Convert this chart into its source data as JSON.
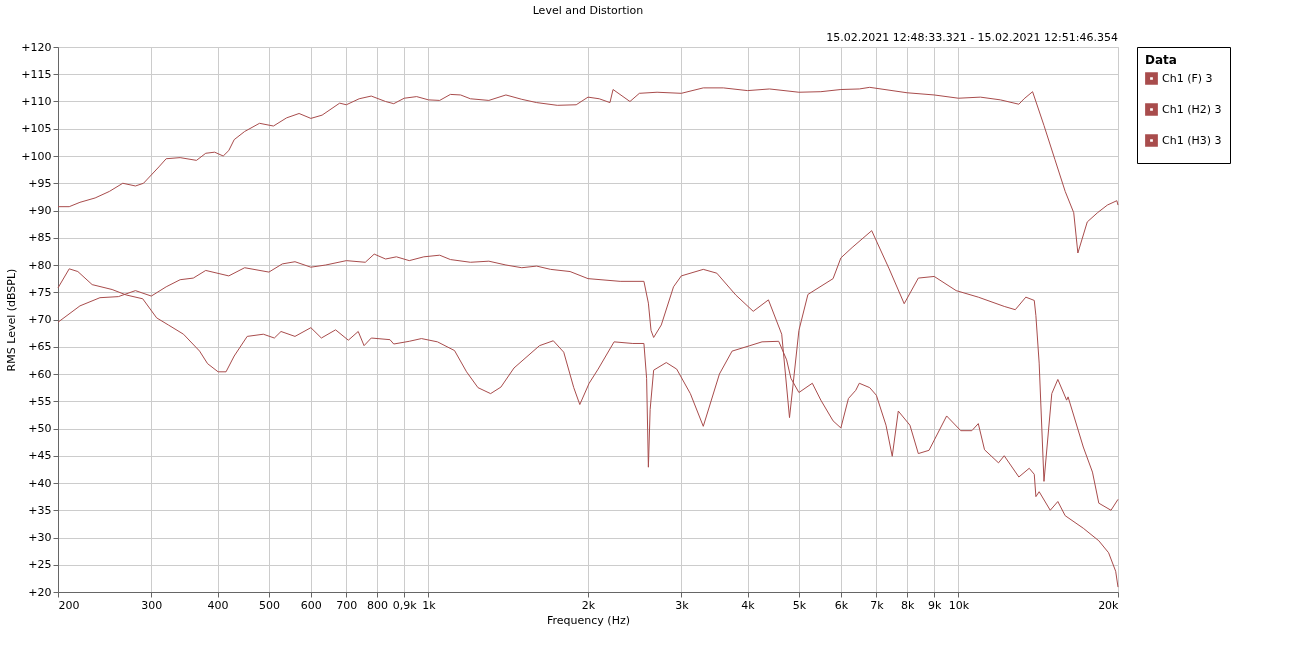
{
  "chart_data": {
    "type": "line",
    "title": "Level and Distortion",
    "subtitle": "15.02.2021 12:48:33.321 - 15.02.2021 12:51:46.354",
    "xlabel": "Frequency (Hz)",
    "ylabel": "RMS Level (dBSPL)",
    "legend_title": "Data",
    "legend": "top right",
    "grid": true,
    "log": "x",
    "line_style": "solid",
    "xlim": [
      200,
      20000
    ],
    "ylim": [
      20,
      120
    ],
    "xticks": [
      200,
      300,
      400,
      500,
      600,
      700,
      800,
      {
        "value": 900,
        "label": "0,9k"
      },
      {
        "value": 1000,
        "label": "1k"
      },
      {
        "value": 2000,
        "label": "2k"
      },
      {
        "value": 3000,
        "label": "3k"
      },
      {
        "value": 4000,
        "label": "4k"
      },
      {
        "value": 5000,
        "label": "5k"
      },
      {
        "value": 6000,
        "label": "6k"
      },
      {
        "value": 7000,
        "label": "7k"
      },
      {
        "value": 8000,
        "label": "8k"
      },
      {
        "value": 9000,
        "label": "9k"
      },
      {
        "value": 10000,
        "label": "10k"
      },
      {
        "value": 20000,
        "label": "20k"
      }
    ],
    "yticks": [
      {
        "value": 20,
        "label": "+20"
      },
      {
        "value": 25,
        "label": "+25"
      },
      {
        "value": 30,
        "label": "+30"
      },
      {
        "value": 35,
        "label": "+35"
      },
      {
        "value": 40,
        "label": "+40"
      },
      {
        "value": 45,
        "label": "+45"
      },
      {
        "value": 50,
        "label": "+50"
      },
      {
        "value": 55,
        "label": "+55"
      },
      {
        "value": 60,
        "label": "+60"
      },
      {
        "value": 65,
        "label": "+65"
      },
      {
        "value": 70,
        "label": "+70"
      },
      {
        "value": 75,
        "label": "+75"
      },
      {
        "value": 80,
        "label": "+80"
      },
      {
        "value": 85,
        "label": "+85"
      },
      {
        "value": 90,
        "label": "+90"
      },
      {
        "value": 95,
        "label": "+95"
      },
      {
        "value": 100,
        "label": "+100"
      },
      {
        "value": 105,
        "label": "+105"
      },
      {
        "value": 110,
        "label": "+110"
      },
      {
        "value": 115,
        "label": "+115"
      },
      {
        "value": 120,
        "label": "+120"
      }
    ],
    "series": [
      {
        "name": "Ch1 (F) 3",
        "color": "#a84c4c",
        "x": [
          200,
          210,
          220,
          235,
          250,
          265,
          280,
          290,
          310,
          320,
          340,
          365,
          380,
          395,
          410,
          420,
          430,
          450,
          480,
          510,
          540,
          570,
          600,
          630,
          680,
          700,
          740,
          780,
          830,
          860,
          900,
          950,
          1000,
          1050,
          1100,
          1150,
          1200,
          1300,
          1400,
          1500,
          1600,
          1750,
          1900,
          2000,
          2100,
          2200,
          2230,
          2400,
          2500,
          2700,
          3000,
          3300,
          3600,
          4000,
          4400,
          5000,
          5500,
          6000,
          6500,
          6800,
          8000,
          9000,
          10000,
          11000,
          12000,
          13000,
          13300,
          13800,
          14500,
          15200,
          15900,
          16500,
          16800,
          17500,
          18300,
          19100,
          19900,
          20000
        ],
        "values": [
          90.7,
          90.7,
          91.5,
          92.3,
          93.5,
          95,
          94.5,
          95,
          98,
          99.5,
          99.7,
          99.2,
          100.5,
          100.7,
          100,
          101,
          103,
          104.5,
          106,
          105.5,
          107,
          107.8,
          106.9,
          107.5,
          109.7,
          109.4,
          110.5,
          111,
          110,
          109.6,
          110.6,
          110.9,
          110.3,
          110.2,
          111.3,
          111.2,
          110.5,
          110.2,
          111.2,
          110.4,
          109.8,
          109.3,
          109.4,
          110.8,
          110.5,
          109.8,
          112.2,
          110,
          111.5,
          111.7,
          111.5,
          112.5,
          112.5,
          112,
          112.3,
          111.7,
          111.8,
          112.2,
          112.3,
          112.6,
          111.6,
          111.2,
          110.6,
          110.8,
          110.3,
          109.5,
          110.5,
          111.8,
          105.6,
          99.4,
          93.5,
          89.6,
          82.2,
          87.9,
          89.6,
          91,
          91.8,
          91
        ]
      },
      {
        "name": "Ch1 (H2) 3",
        "color": "#a84c4c",
        "x": [
          200,
          220,
          240,
          260,
          280,
          300,
          320,
          340,
          360,
          380,
          420,
          450,
          500,
          530,
          560,
          600,
          640,
          700,
          760,
          790,
          830,
          870,
          920,
          980,
          1050,
          1100,
          1200,
          1300,
          1400,
          1500,
          1600,
          1700,
          1850,
          2000,
          2300,
          2550,
          2600,
          2630,
          2660,
          2750,
          2900,
          3000,
          3300,
          3500,
          3800,
          4100,
          4380,
          4640,
          4800,
          5000,
          5200,
          5800,
          6000,
          6300,
          6860,
          7400,
          7900,
          8400,
          9000,
          9900,
          10900,
          12200,
          12800,
          13400,
          13900,
          14000,
          14200,
          14500,
          15000,
          15400,
          16000,
          16100,
          17200,
          17900,
          18400,
          19400,
          20000
        ],
        "values": [
          69.5,
          72.5,
          74,
          74.2,
          75.3,
          74.3,
          76,
          77.3,
          77.6,
          79,
          78,
          79.5,
          78.7,
          80.2,
          80.6,
          79.6,
          80,
          80.8,
          80.5,
          82,
          81.1,
          81.5,
          80.8,
          81.5,
          81.8,
          81,
          80.5,
          80.7,
          80,
          79.5,
          79.8,
          79.2,
          78.8,
          77.5,
          77,
          77,
          73,
          68,
          66.7,
          69,
          76,
          78,
          79.2,
          78.5,
          74.5,
          71.5,
          73.6,
          67.3,
          52,
          68,
          74.6,
          77.5,
          81.3,
          83.2,
          86.3,
          79.3,
          72.9,
          77.6,
          77.9,
          75.3,
          74.1,
          72.4,
          71.8,
          74.1,
          73.5,
          70.7,
          62,
          40.3,
          56.4,
          59,
          55.2,
          55.8,
          46.6,
          42,
          36.3,
          35,
          37
        ]
      },
      {
        "name": "Ch1 (H3) 3",
        "color": "#a84c4c",
        "x": [
          200,
          210,
          218,
          232,
          253,
          269,
          289,
          307,
          323,
          345,
          370,
          383,
          401,
          415,
          430,
          455,
          488,
          512,
          527,
          560,
          600,
          628,
          668,
          706,
          737,
          756,
          780,
          846,
          860,
          920,
          970,
          1040,
          1120,
          1180,
          1240,
          1310,
          1370,
          1450,
          1620,
          1720,
          1800,
          1880,
          1930,
          2010,
          2090,
          2240,
          2430,
          2550,
          2580,
          2600,
          2620,
          2660,
          2810,
          2940,
          3120,
          3300,
          3540,
          3740,
          4040,
          4260,
          4580,
          4740,
          4830,
          5000,
          5300,
          5500,
          5800,
          6000,
          6200,
          6400,
          6500,
          6800,
          7000,
          7300,
          7500,
          7700,
          8100,
          8400,
          8800,
          9500,
          10100,
          10600,
          10900,
          11200,
          11900,
          12200,
          13000,
          13600,
          13900,
          14000,
          14200,
          14900,
          15400,
          15900,
          17200,
          18400,
          19200,
          19800,
          20000
        ],
        "values": [
          75.8,
          79.3,
          78.8,
          76.4,
          75.5,
          74.5,
          73.8,
          70.3,
          69,
          67.3,
          64.2,
          61.9,
          60.4,
          60.4,
          63.3,
          66.9,
          67.3,
          66.6,
          67.8,
          66.9,
          68.5,
          66.6,
          68.1,
          66.2,
          67.8,
          65.2,
          66.6,
          66.3,
          65.5,
          66,
          66.5,
          65.9,
          64.3,
          60.4,
          57.5,
          56.4,
          57.6,
          61.1,
          65.2,
          66.1,
          64,
          57.5,
          54.4,
          58.3,
          60.9,
          65.9,
          65.6,
          65.6,
          59.2,
          42.9,
          53.5,
          60.7,
          62.1,
          60.9,
          56.4,
          50.4,
          60,
          64.2,
          65.2,
          65.9,
          66,
          62.6,
          59.2,
          56.6,
          58.3,
          55.2,
          51.4,
          50.1,
          55.5,
          57,
          58.3,
          57.5,
          56.1,
          50.6,
          44.9,
          53.2,
          50.6,
          45.4,
          46,
          52.3,
          49.6,
          49.6,
          50.9,
          46.1,
          43.7,
          45,
          41.1,
          42.7,
          41.6,
          37.5,
          38.4,
          35,
          36.6,
          34,
          31.7,
          29.4,
          27.2,
          23.8,
          20.9
        ]
      }
    ]
  }
}
